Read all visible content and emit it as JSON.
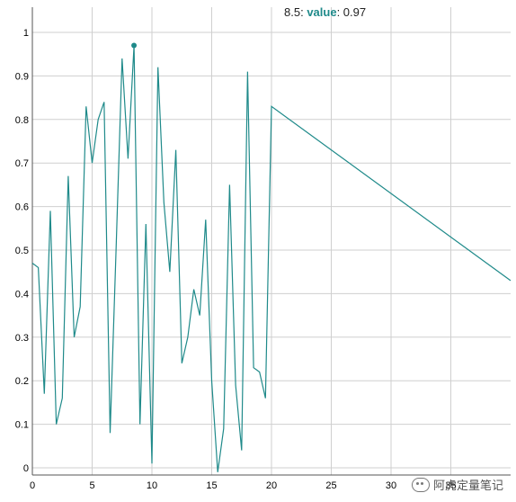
{
  "chart_data": {
    "type": "line",
    "title": "",
    "xlabel": "",
    "ylabel": "",
    "xlim": [
      0,
      40
    ],
    "ylim": [
      0,
      1
    ],
    "x_ticks": [
      0,
      5,
      10,
      15,
      20,
      25,
      30,
      35
    ],
    "y_ticks": [
      0,
      0.1,
      0.2,
      0.3,
      0.4,
      0.5,
      0.6,
      0.7,
      0.8,
      0.9,
      1
    ],
    "grid": true,
    "line_color": "#1f8a8a",
    "series": [
      {
        "name": "value",
        "x": [
          0,
          0.5,
          1,
          1.5,
          2,
          2.5,
          3,
          3.5,
          4,
          4.5,
          5,
          5.5,
          6,
          6.5,
          7,
          7.5,
          8,
          8.5,
          9,
          9.5,
          10,
          10.5,
          11,
          11.5,
          12,
          12.5,
          13,
          13.5,
          14,
          14.5,
          15,
          15.5,
          16,
          16.5,
          17,
          17.5,
          18,
          18.5,
          19,
          19.5,
          20,
          40
        ],
        "y": [
          0.47,
          0.46,
          0.17,
          0.59,
          0.1,
          0.16,
          0.67,
          0.3,
          0.37,
          0.83,
          0.7,
          0.8,
          0.84,
          0.08,
          0.5,
          0.94,
          0.71,
          0.97,
          0.1,
          0.56,
          0.01,
          0.92,
          0.61,
          0.45,
          0.73,
          0.24,
          0.3,
          0.41,
          0.35,
          0.57,
          0.2,
          -0.01,
          0.09,
          0.65,
          0.19,
          0.04,
          0.91,
          0.23,
          0.22,
          0.16,
          0.83,
          0.43
        ]
      }
    ],
    "highlight": {
      "x": 8.5,
      "y": 0.97
    }
  },
  "tooltip": {
    "x_label": "8.5",
    "series_name": "value",
    "value": "0.97"
  },
  "watermark": {
    "text": "阿虎定量笔记"
  }
}
